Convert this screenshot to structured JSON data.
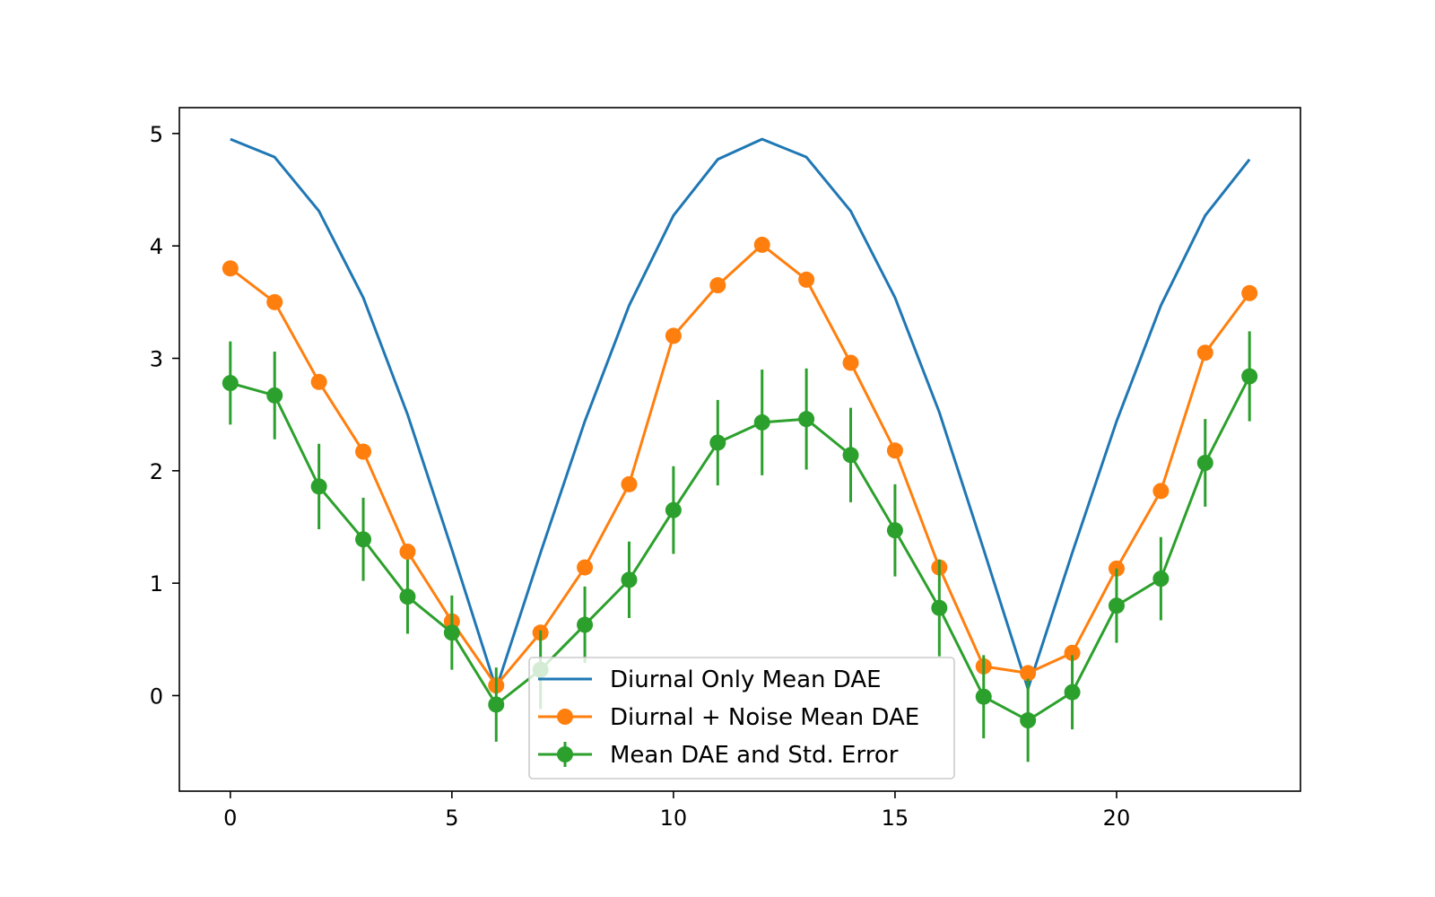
{
  "chart_data": {
    "type": "line",
    "title": "",
    "xlabel": "",
    "ylabel": "",
    "xlim": [
      -1.15,
      24.15
    ],
    "ylim": [
      -0.85,
      5.23
    ],
    "x": [
      0,
      1,
      2,
      3,
      4,
      5,
      6,
      7,
      8,
      9,
      10,
      11,
      12,
      13,
      14,
      15,
      16,
      17,
      18,
      19,
      20,
      21,
      22,
      23
    ],
    "x_ticks": [
      0,
      5,
      10,
      15,
      20
    ],
    "y_ticks": [
      0,
      1,
      2,
      3,
      4,
      5
    ],
    "grid": false,
    "legend_position": "lower center",
    "series": [
      {
        "name": "Diurnal Only Mean DAE",
        "color": "#1f77b4",
        "marker": "none",
        "values": [
          4.95,
          4.79,
          4.31,
          3.54,
          2.5,
          1.3,
          0.06,
          1.27,
          2.44,
          3.47,
          4.27,
          4.77,
          4.95,
          4.79,
          4.31,
          3.54,
          2.52,
          1.3,
          0.06,
          1.27,
          2.44,
          3.47,
          4.27,
          4.77
        ]
      },
      {
        "name": "Diurnal + Noise Mean DAE",
        "color": "#ff7f0e",
        "marker": "circle",
        "values": [
          3.8,
          3.5,
          2.79,
          2.17,
          1.28,
          0.66,
          0.09,
          0.56,
          1.14,
          1.88,
          3.2,
          3.65,
          4.01,
          3.7,
          2.96,
          2.18,
          1.14,
          0.26,
          0.2,
          0.38,
          1.13,
          1.82,
          3.05,
          3.58
        ]
      },
      {
        "name": "Mean DAE and Std. Error",
        "color": "#2ca02c",
        "marker": "circle",
        "values": [
          2.78,
          2.67,
          1.86,
          1.39,
          0.88,
          0.56,
          -0.08,
          0.23,
          0.63,
          1.03,
          1.65,
          2.25,
          2.43,
          2.46,
          2.14,
          1.47,
          0.78,
          -0.01,
          -0.22,
          0.03,
          0.8,
          1.04,
          2.07,
          2.84
        ],
        "errors": [
          0.37,
          0.39,
          0.38,
          0.37,
          0.33,
          0.33,
          0.33,
          0.35,
          0.34,
          0.34,
          0.39,
          0.38,
          0.47,
          0.45,
          0.42,
          0.41,
          0.43,
          0.37,
          0.37,
          0.33,
          0.33,
          0.37,
          0.39,
          0.4
        ]
      }
    ]
  }
}
